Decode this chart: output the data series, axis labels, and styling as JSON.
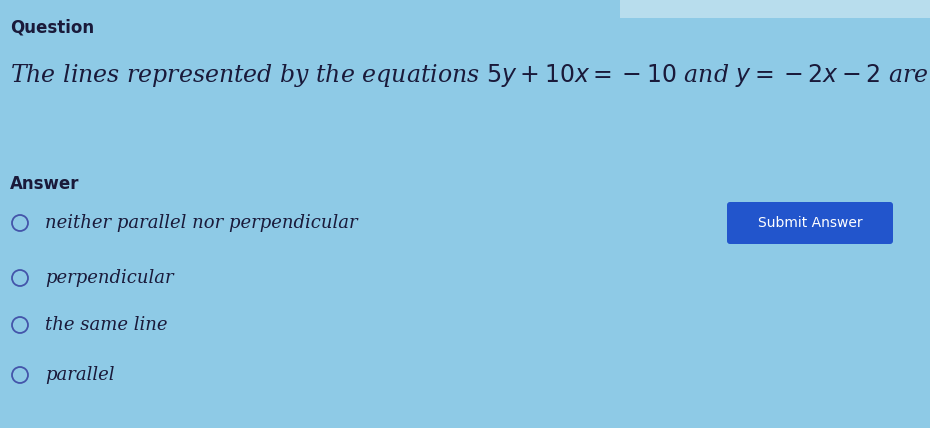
{
  "background_color": "#8ecae6",
  "title_text": "Question",
  "title_fontsize": 12,
  "question_line1": "The lines represented by the equations ",
  "question_math": "$5y + 10x = -10$",
  "question_mid": " and ",
  "question_math2": "$y = -2x - 2$",
  "question_end": " are",
  "question_fontsize": 17,
  "answer_label": "Answer",
  "answer_fontsize": 12,
  "options": [
    "neither parallel nor perpendicular",
    "perpendicular",
    "the same line",
    "parallel"
  ],
  "option_fontsize": 13,
  "submit_button_text": "Submit Answer",
  "submit_button_color": "#2255cc",
  "submit_button_text_color": "#ffffff",
  "submit_fontsize": 10,
  "text_color": "#1a1a3a",
  "radio_edge_color": "#4455aa",
  "top_bar_color": "#b8dded",
  "fig_width": 9.3,
  "fig_height": 4.28,
  "dpi": 100
}
